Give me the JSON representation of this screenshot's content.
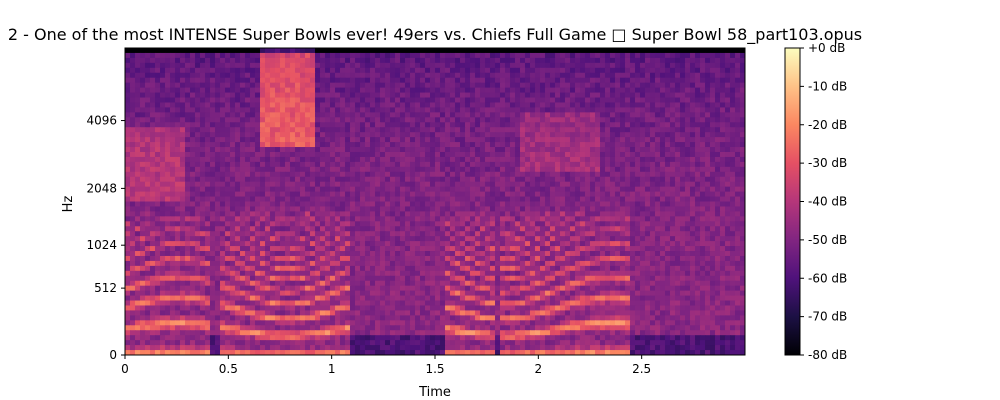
{
  "chart_data": {
    "type": "heatmap",
    "subtype": "mel-spectrogram",
    "title": "2 - One of the most INTENSE Super Bowls ever! 49ers vs. Chiefs Full Game □ Super Bowl 58_part103.opus",
    "xlabel": "Time",
    "ylabel": "Hz",
    "x_ticks": [
      "0",
      "0.5",
      "1",
      "1.5",
      "2",
      "2.5"
    ],
    "x_tick_values": [
      0,
      0.5,
      1,
      1.5,
      2,
      2.5
    ],
    "xlim": [
      0,
      3.0
    ],
    "y_ticks": [
      "0",
      "512",
      "1024",
      "2048",
      "4096"
    ],
    "y_tick_values": [
      0,
      512,
      1024,
      2048,
      4096
    ],
    "y_scale": "mel",
    "ylim": [
      0,
      8000
    ],
    "colorbar": {
      "label_ticks": [
        "+0 dB",
        "-10 dB",
        "-20 dB",
        "-30 dB",
        "-40 dB",
        "-50 dB",
        "-60 dB",
        "-70 dB",
        "-80 dB"
      ],
      "range": [
        -80,
        0
      ],
      "colormap": "magma",
      "stops": [
        "#000004",
        "#1c1044",
        "#4f127b",
        "#812581",
        "#b5367a",
        "#e55064",
        "#fb8761",
        "#fec287",
        "#fcfdbf"
      ]
    },
    "grid": false
  }
}
